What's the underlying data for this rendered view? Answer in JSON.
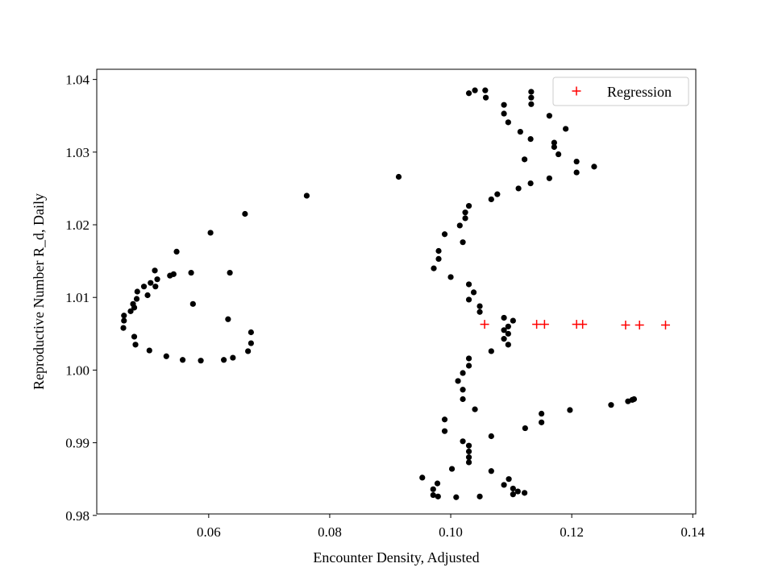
{
  "chart_data": {
    "type": "scatter",
    "title": "",
    "xlabel": "Encounter Density, Adjusted",
    "ylabel": "Reproductive Number R_d, Daily",
    "xlim": [
      0.0415,
      0.1405
    ],
    "ylim": [
      0.9802,
      1.0414
    ],
    "xticks": [
      0.06,
      0.08,
      0.1,
      0.12,
      0.14
    ],
    "xtick_labels": [
      "0.06",
      "0.08",
      "0.10",
      "0.12",
      "0.14"
    ],
    "yticks": [
      0.98,
      0.99,
      1.0,
      1.01,
      1.02,
      1.03,
      1.04
    ],
    "ytick_labels": [
      "0.98",
      "0.99",
      "1.00",
      "1.01",
      "1.02",
      "1.03",
      "1.04"
    ],
    "grid": false,
    "legend_position": "upper right",
    "colors": {
      "data": "#000000",
      "regression": "#ff0000",
      "axis": "#000000"
    },
    "series": [
      {
        "marker": "circle",
        "color": "#000000",
        "points": [
          [
            0.0914,
            1.0266
          ],
          [
            0.0762,
            1.024
          ],
          [
            0.066,
            1.0215
          ],
          [
            0.0603,
            1.0189
          ],
          [
            0.0547,
            1.0163
          ],
          [
            0.0511,
            1.0137
          ],
          [
            0.0571,
            1.0134
          ],
          [
            0.0635,
            1.0134
          ],
          [
            0.0542,
            1.0132
          ],
          [
            0.0536,
            1.013
          ],
          [
            0.0515,
            1.0125
          ],
          [
            0.0504,
            1.012
          ],
          [
            0.0512,
            1.0115
          ],
          [
            0.0493,
            1.0115
          ],
          [
            0.0482,
            1.0108
          ],
          [
            0.0499,
            1.0103
          ],
          [
            0.0481,
            1.0098
          ],
          [
            0.0574,
            1.0091
          ],
          [
            0.0475,
            1.0091
          ],
          [
            0.0477,
            1.0086
          ],
          [
            0.0471,
            1.0081
          ],
          [
            0.046,
            1.0075
          ],
          [
            0.0632,
            1.007
          ],
          [
            0.046,
            1.0068
          ],
          [
            0.0459,
            1.0058
          ],
          [
            0.067,
            1.0052
          ],
          [
            0.0477,
            1.0046
          ],
          [
            0.067,
            1.0037
          ],
          [
            0.0479,
            1.0035
          ],
          [
            0.0502,
            1.0027
          ],
          [
            0.0665,
            1.0026
          ],
          [
            0.053,
            1.0019
          ],
          [
            0.064,
            1.0017
          ],
          [
            0.0557,
            1.0014
          ],
          [
            0.0625,
            1.0014
          ],
          [
            0.0587,
            1.0013
          ],
          [
            0.103,
            1.0381
          ],
          [
            0.104,
            1.0385
          ],
          [
            0.1057,
            1.0385
          ],
          [
            0.1133,
            1.0383
          ],
          [
            0.1058,
            1.0375
          ],
          [
            0.1133,
            1.0375
          ],
          [
            0.1088,
            1.0365
          ],
          [
            0.1133,
            1.0366
          ],
          [
            0.1088,
            1.0353
          ],
          [
            0.1163,
            1.035
          ],
          [
            0.1095,
            1.0341
          ],
          [
            0.119,
            1.0332
          ],
          [
            0.1115,
            1.0328
          ],
          [
            0.1132,
            1.0318
          ],
          [
            0.1171,
            1.0313
          ],
          [
            0.1171,
            1.0307
          ],
          [
            0.1178,
            1.0297
          ],
          [
            0.1122,
            1.029
          ],
          [
            0.1208,
            1.0287
          ],
          [
            0.1237,
            1.028
          ],
          [
            0.1208,
            1.0272
          ],
          [
            0.1163,
            1.0264
          ],
          [
            0.1132,
            1.0257
          ],
          [
            0.1112,
            1.025
          ],
          [
            0.1077,
            1.0242
          ],
          [
            0.1067,
            1.0235
          ],
          [
            0.103,
            1.0226
          ],
          [
            0.1024,
            1.0217
          ],
          [
            0.1024,
            1.0209
          ],
          [
            0.1015,
            1.0199
          ],
          [
            0.099,
            1.0187
          ],
          [
            0.102,
            1.0176
          ],
          [
            0.098,
            1.0164
          ],
          [
            0.098,
            1.0153
          ],
          [
            0.0972,
            1.014
          ],
          [
            0.1,
            1.0128
          ],
          [
            0.103,
            1.0118
          ],
          [
            0.1038,
            1.0107
          ],
          [
            0.103,
            1.0097
          ],
          [
            0.1048,
            1.0088
          ],
          [
            0.1048,
            1.008
          ],
          [
            0.1088,
            1.0072
          ],
          [
            0.1103,
            1.0068
          ],
          [
            0.1095,
            1.006
          ],
          [
            0.1088,
            1.0055
          ],
          [
            0.1095,
            1.005
          ],
          [
            0.1088,
            1.0043
          ],
          [
            0.1095,
            1.0035
          ],
          [
            0.1067,
            1.0026
          ],
          [
            0.103,
            1.0016
          ],
          [
            0.103,
            1.0006
          ],
          [
            0.102,
            0.9996
          ],
          [
            0.1012,
            0.9985
          ],
          [
            0.102,
            0.9973
          ],
          [
            0.102,
            0.996
          ],
          [
            0.104,
            0.9946
          ],
          [
            0.099,
            0.9932
          ],
          [
            0.099,
            0.9916
          ],
          [
            0.102,
            0.9902
          ],
          [
            0.103,
            0.9896
          ],
          [
            0.103,
            0.9888
          ],
          [
            0.103,
            0.988
          ],
          [
            0.103,
            0.9873
          ],
          [
            0.1002,
            0.9864
          ],
          [
            0.0953,
            0.9852
          ],
          [
            0.0978,
            0.9844
          ],
          [
            0.0971,
            0.9836
          ],
          [
            0.0971,
            0.9828
          ],
          [
            0.0979,
            0.9826
          ],
          [
            0.1009,
            0.9825
          ],
          [
            0.1048,
            0.9826
          ],
          [
            0.1067,
            0.9861
          ],
          [
            0.1088,
            0.9842
          ],
          [
            0.1096,
            0.985
          ],
          [
            0.1103,
            0.9837
          ],
          [
            0.1103,
            0.9829
          ],
          [
            0.1111,
            0.9833
          ],
          [
            0.1122,
            0.9831
          ],
          [
            0.1067,
            0.9909
          ],
          [
            0.1123,
            0.992
          ],
          [
            0.115,
            0.9928
          ],
          [
            0.115,
            0.994
          ],
          [
            0.1197,
            0.9945
          ],
          [
            0.1265,
            0.9952
          ],
          [
            0.1293,
            0.9957
          ],
          [
            0.13,
            0.9959
          ],
          [
            0.1303,
            0.996
          ]
        ]
      },
      {
        "name": "Regression",
        "marker": "plus",
        "color": "#ff0000",
        "points": [
          [
            0.1056,
            1.0063
          ],
          [
            0.1142,
            1.0063
          ],
          [
            0.1155,
            1.0063
          ],
          [
            0.1208,
            1.0063
          ],
          [
            0.1218,
            1.0063
          ],
          [
            0.1289,
            1.0062
          ],
          [
            0.1312,
            1.0062
          ],
          [
            0.1355,
            1.0062
          ]
        ]
      }
    ]
  }
}
